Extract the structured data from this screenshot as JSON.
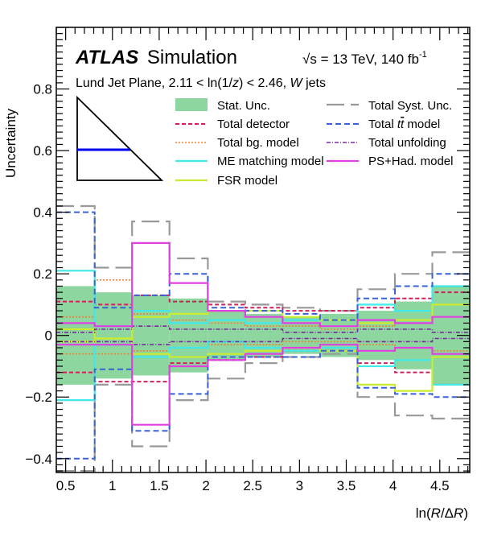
{
  "chart_data": {
    "type": "line",
    "experiment": "ATLAS",
    "experiment_suffix": "Simulation",
    "energy": {
      "prefix": "√s",
      "text": " = 13 TeV, 140 fb",
      "sup": "-1"
    },
    "selection": {
      "prefix": "Lund Jet Plane, 2.11 < ln(1/",
      "z": "z",
      "mid": ") < 2.46, ",
      "W": "W",
      "suffix": " jets"
    },
    "xlabel": {
      "pre": "ln(",
      "R": "R",
      "mid": "/Δ",
      "R2": "R",
      "post": ")"
    },
    "ylabel": "Uncertainty",
    "xlim": [
      0.4,
      4.82
    ],
    "ylim": [
      -0.445,
      1.0
    ],
    "xticks": [
      {
        "v": 0.5,
        "label": "0.5"
      },
      {
        "v": 1,
        "label": "1"
      },
      {
        "v": 1.5,
        "label": "1.5"
      },
      {
        "v": 2,
        "label": "2"
      },
      {
        "v": 2.5,
        "label": "2.5"
      },
      {
        "v": 3,
        "label": "3"
      },
      {
        "v": 3.5,
        "label": "3.5"
      },
      {
        "v": 4,
        "label": "4"
      },
      {
        "v": 4.5,
        "label": "4.5"
      }
    ],
    "yticks": [
      {
        "v": -0.4,
        "label": "−0.4"
      },
      {
        "v": -0.2,
        "label": "−0.2"
      },
      {
        "v": 0,
        "label": "0"
      },
      {
        "v": 0.2,
        "label": "0.2"
      },
      {
        "v": 0.4,
        "label": "0.4"
      },
      {
        "v": 0.6,
        "label": "0.6"
      },
      {
        "v": 0.8,
        "label": "0.8"
      }
    ],
    "bin_edges": [
      0.4,
      0.81,
      1.21,
      1.61,
      2.02,
      2.42,
      2.82,
      3.22,
      3.62,
      4.02,
      4.42,
      4.82
    ],
    "stat_band": {
      "name": "Stat. Unc.",
      "color": "#8ed6a0",
      "up": [
        0.16,
        0.14,
        0.13,
        0.12,
        0.08,
        0.07,
        0.06,
        0.07,
        0.08,
        0.11,
        0.16
      ],
      "down": [
        -0.16,
        -0.14,
        -0.13,
        -0.12,
        -0.08,
        -0.07,
        -0.06,
        -0.07,
        -0.08,
        -0.11,
        -0.16
      ]
    },
    "series": [
      {
        "name": "Total Syst. Unc.",
        "color": "#999999",
        "dash": "22,8",
        "width": 2.2,
        "up": [
          0.42,
          0.22,
          0.37,
          0.25,
          0.11,
          0.1,
          0.09,
          0.08,
          0.15,
          0.2,
          0.27
        ],
        "down": [
          -0.44,
          -0.16,
          -0.36,
          -0.21,
          -0.14,
          -0.09,
          -0.07,
          -0.06,
          -0.2,
          -0.26,
          -0.27
        ]
      },
      {
        "name": "Total detector",
        "color": "#d0205a",
        "dash": "5,3",
        "width": 2,
        "up": [
          0.11,
          0.1,
          0.13,
          0.11,
          0.1,
          0.09,
          0.08,
          0.08,
          0.09,
          0.12,
          0.14
        ],
        "down": [
          -0.12,
          -0.15,
          -0.15,
          -0.09,
          -0.08,
          -0.07,
          -0.05,
          -0.05,
          -0.09,
          -0.12,
          -0.16
        ]
      },
      {
        "name": "Total bg. model",
        "color": "#f08030",
        "dash": "2,2",
        "width": 1.6,
        "up": [
          0.06,
          0.18,
          0.07,
          0.05,
          0.04,
          0.03,
          0.03,
          0.02,
          0.03,
          0.04,
          0.06
        ],
        "down": [
          -0.06,
          -0.06,
          -0.05,
          -0.04,
          -0.03,
          -0.03,
          -0.02,
          -0.02,
          -0.03,
          -0.04,
          -0.05
        ]
      },
      {
        "name": "ME matching model",
        "color": "#40e8e8",
        "dash": "",
        "width": 2.2,
        "up": [
          0.21,
          0.03,
          0.08,
          0.04,
          0.05,
          0.04,
          0.05,
          0.05,
          0.1,
          0.08,
          0.16
        ],
        "down": [
          -0.21,
          -0.03,
          -0.07,
          -0.04,
          -0.02,
          -0.04,
          -0.05,
          -0.04,
          -0.1,
          -0.08,
          -0.16
        ]
      },
      {
        "name": "FSR model",
        "color": "#c8ec30",
        "dash": "",
        "width": 2.2,
        "up": [
          0.02,
          -0.01,
          0.06,
          0.07,
          0.08,
          0.08,
          0.06,
          0.05,
          0.04,
          0.05,
          0.1
        ],
        "down": [
          -0.02,
          -0.01,
          -0.06,
          -0.07,
          -0.06,
          -0.05,
          -0.04,
          -0.05,
          -0.16,
          -0.18,
          -0.07
        ]
      },
      {
        "name": "Total tt̄ model",
        "label_pre": "Total ",
        "label_t1": "t",
        "label_t2": "t",
        "color": "#3a62d8",
        "dash": "7,4",
        "width": 2,
        "up": [
          0.4,
          0.09,
          0.13,
          0.2,
          0.09,
          0.08,
          0.07,
          0.05,
          0.12,
          0.16,
          0.2
        ],
        "down": [
          -0.4,
          -0.11,
          -0.31,
          -0.19,
          -0.07,
          -0.07,
          -0.07,
          -0.05,
          -0.17,
          -0.19,
          -0.2
        ]
      },
      {
        "name": "Total unfolding",
        "color": "#7a2a9c",
        "dash": "5,2,1,2",
        "width": 1.6,
        "up": [
          0.01,
          0.02,
          0.03,
          0.02,
          0.02,
          0.02,
          0.01,
          0.01,
          0.02,
          0.02,
          0.01
        ],
        "down": [
          -0.02,
          -0.02,
          -0.03,
          -0.02,
          -0.02,
          -0.02,
          -0.01,
          -0.01,
          -0.02,
          -0.02,
          -0.01
        ]
      },
      {
        "name": "PS+Had. model",
        "color": "#e040e0",
        "dash": "",
        "width": 2.2,
        "up": [
          0.04,
          0.03,
          0.3,
          0.17,
          0.08,
          0.06,
          0.04,
          0.03,
          0.05,
          0.04,
          0.06
        ],
        "down": [
          -0.03,
          -0.03,
          -0.29,
          -0.1,
          -0.08,
          -0.06,
          -0.04,
          -0.03,
          -0.05,
          -0.04,
          -0.06
        ]
      }
    ],
    "inset": {
      "line_color": "#0000ee"
    },
    "grid": false,
    "legend_position": "top"
  }
}
